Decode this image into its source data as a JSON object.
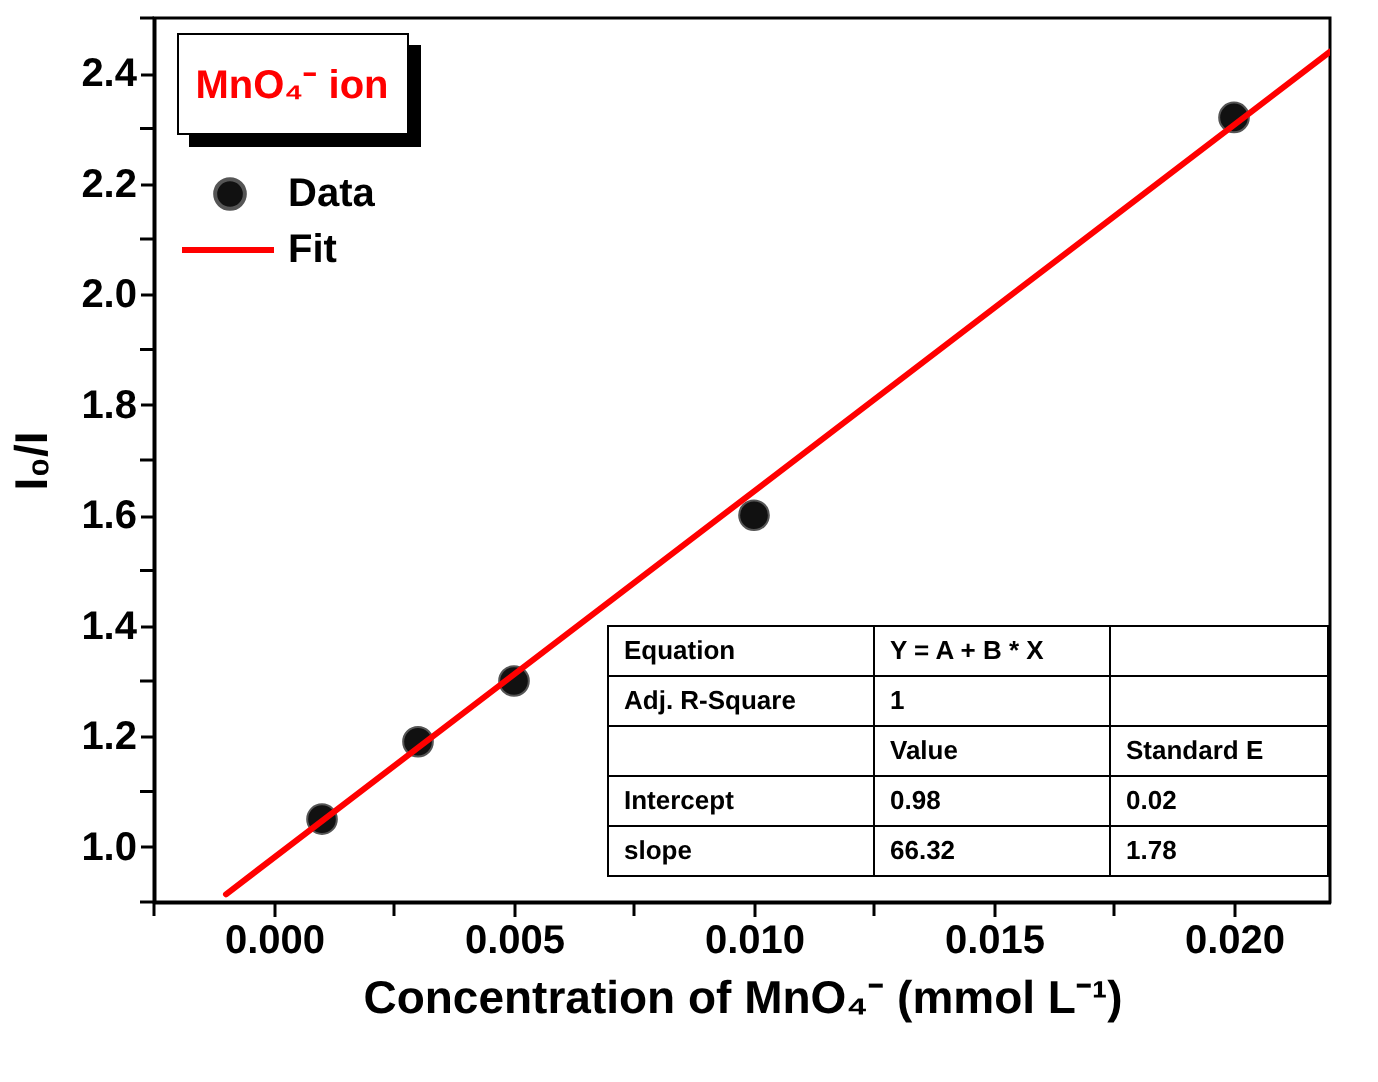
{
  "chart_data": {
    "type": "scatter",
    "xlabel": "Concentration of MnO₄⁻ (mmol L⁻¹)",
    "ylabel": "I₀/I",
    "legend_title": "MnO₄⁻ ion",
    "legend": "top left",
    "xlim": [
      -0.0025,
      0.022
    ],
    "ylim": [
      0.9,
      2.5
    ],
    "xticks": [
      {
        "value": -0.0025,
        "label": null
      },
      {
        "value": 0,
        "label": "0.000"
      },
      {
        "value": 0.0025,
        "label": null
      },
      {
        "value": 0.005,
        "label": "0.005"
      },
      {
        "value": 0.0075,
        "label": null
      },
      {
        "value": 0.01,
        "label": "0.010"
      },
      {
        "value": 0.0125,
        "label": null
      },
      {
        "value": 0.015,
        "label": "0.015"
      },
      {
        "value": 0.0175,
        "label": null
      },
      {
        "value": 0.02,
        "label": "0.020"
      }
    ],
    "yticks": [
      {
        "value": 0.9,
        "label": null
      },
      {
        "value": 1.0,
        "label": "1.0"
      },
      {
        "value": 1.1,
        "label": null
      },
      {
        "value": 1.2,
        "label": "1.2"
      },
      {
        "value": 1.3,
        "label": null
      },
      {
        "value": 1.4,
        "label": "1.4"
      },
      {
        "value": 1.5,
        "label": null
      },
      {
        "value": 1.6,
        "label": "1.6"
      },
      {
        "value": 1.7,
        "label": null
      },
      {
        "value": 1.8,
        "label": "1.8"
      },
      {
        "value": 1.9,
        "label": null
      },
      {
        "value": 2.0,
        "label": "2.0"
      },
      {
        "value": 2.1,
        "label": null
      },
      {
        "value": 2.2,
        "label": "2.2"
      },
      {
        "value": 2.3,
        "label": null
      },
      {
        "value": 2.4,
        "label": "2.4"
      },
      {
        "value": 2.5,
        "label": null
      }
    ],
    "series": [
      {
        "name": "Data",
        "marker": "circle",
        "color": "#111111",
        "x": [
          0.001,
          0.003,
          0.005,
          0.01,
          0.02
        ],
        "values": [
          1.05,
          1.19,
          1.3,
          1.6,
          2.32
        ]
      },
      {
        "name": "Fit",
        "type": "line",
        "line_style": "solid",
        "color": "#ff0000",
        "x": [
          -0.001,
          0.022
        ],
        "values": [
          0.914,
          2.439
        ]
      }
    ],
    "annotations": [
      "Equation",
      "Y = A + B * X",
      "Adj. R-Square",
      "1",
      "Value",
      "Standard E",
      "Intercept",
      "0.98",
      "0.02",
      "slope",
      "66.32",
      "1.78"
    ]
  }
}
